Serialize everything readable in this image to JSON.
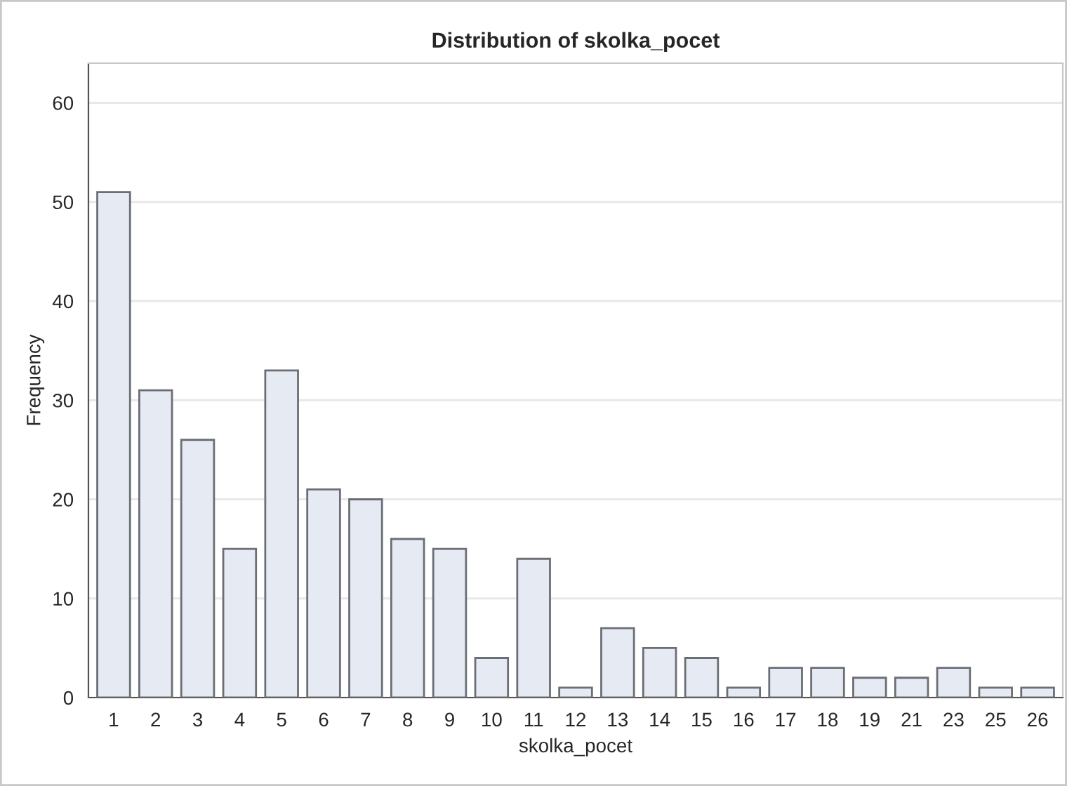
{
  "chart_data": {
    "type": "bar",
    "title": "Distribution of skolka_pocet",
    "xlabel": "skolka_pocet",
    "ylabel": "Frequency",
    "categories": [
      "1",
      "2",
      "3",
      "4",
      "5",
      "6",
      "7",
      "8",
      "9",
      "10",
      "11",
      "12",
      "13",
      "14",
      "15",
      "16",
      "17",
      "18",
      "19",
      "21",
      "23",
      "25",
      "26"
    ],
    "values": [
      51,
      31,
      26,
      15,
      33,
      21,
      20,
      16,
      15,
      4,
      14,
      1,
      7,
      5,
      4,
      1,
      3,
      3,
      2,
      2,
      3,
      1,
      1
    ],
    "color": "#e6eaf3",
    "ylim": [
      0,
      64
    ],
    "yticks": [
      0,
      10,
      20,
      30,
      40,
      50,
      60
    ],
    "grid": "y"
  }
}
